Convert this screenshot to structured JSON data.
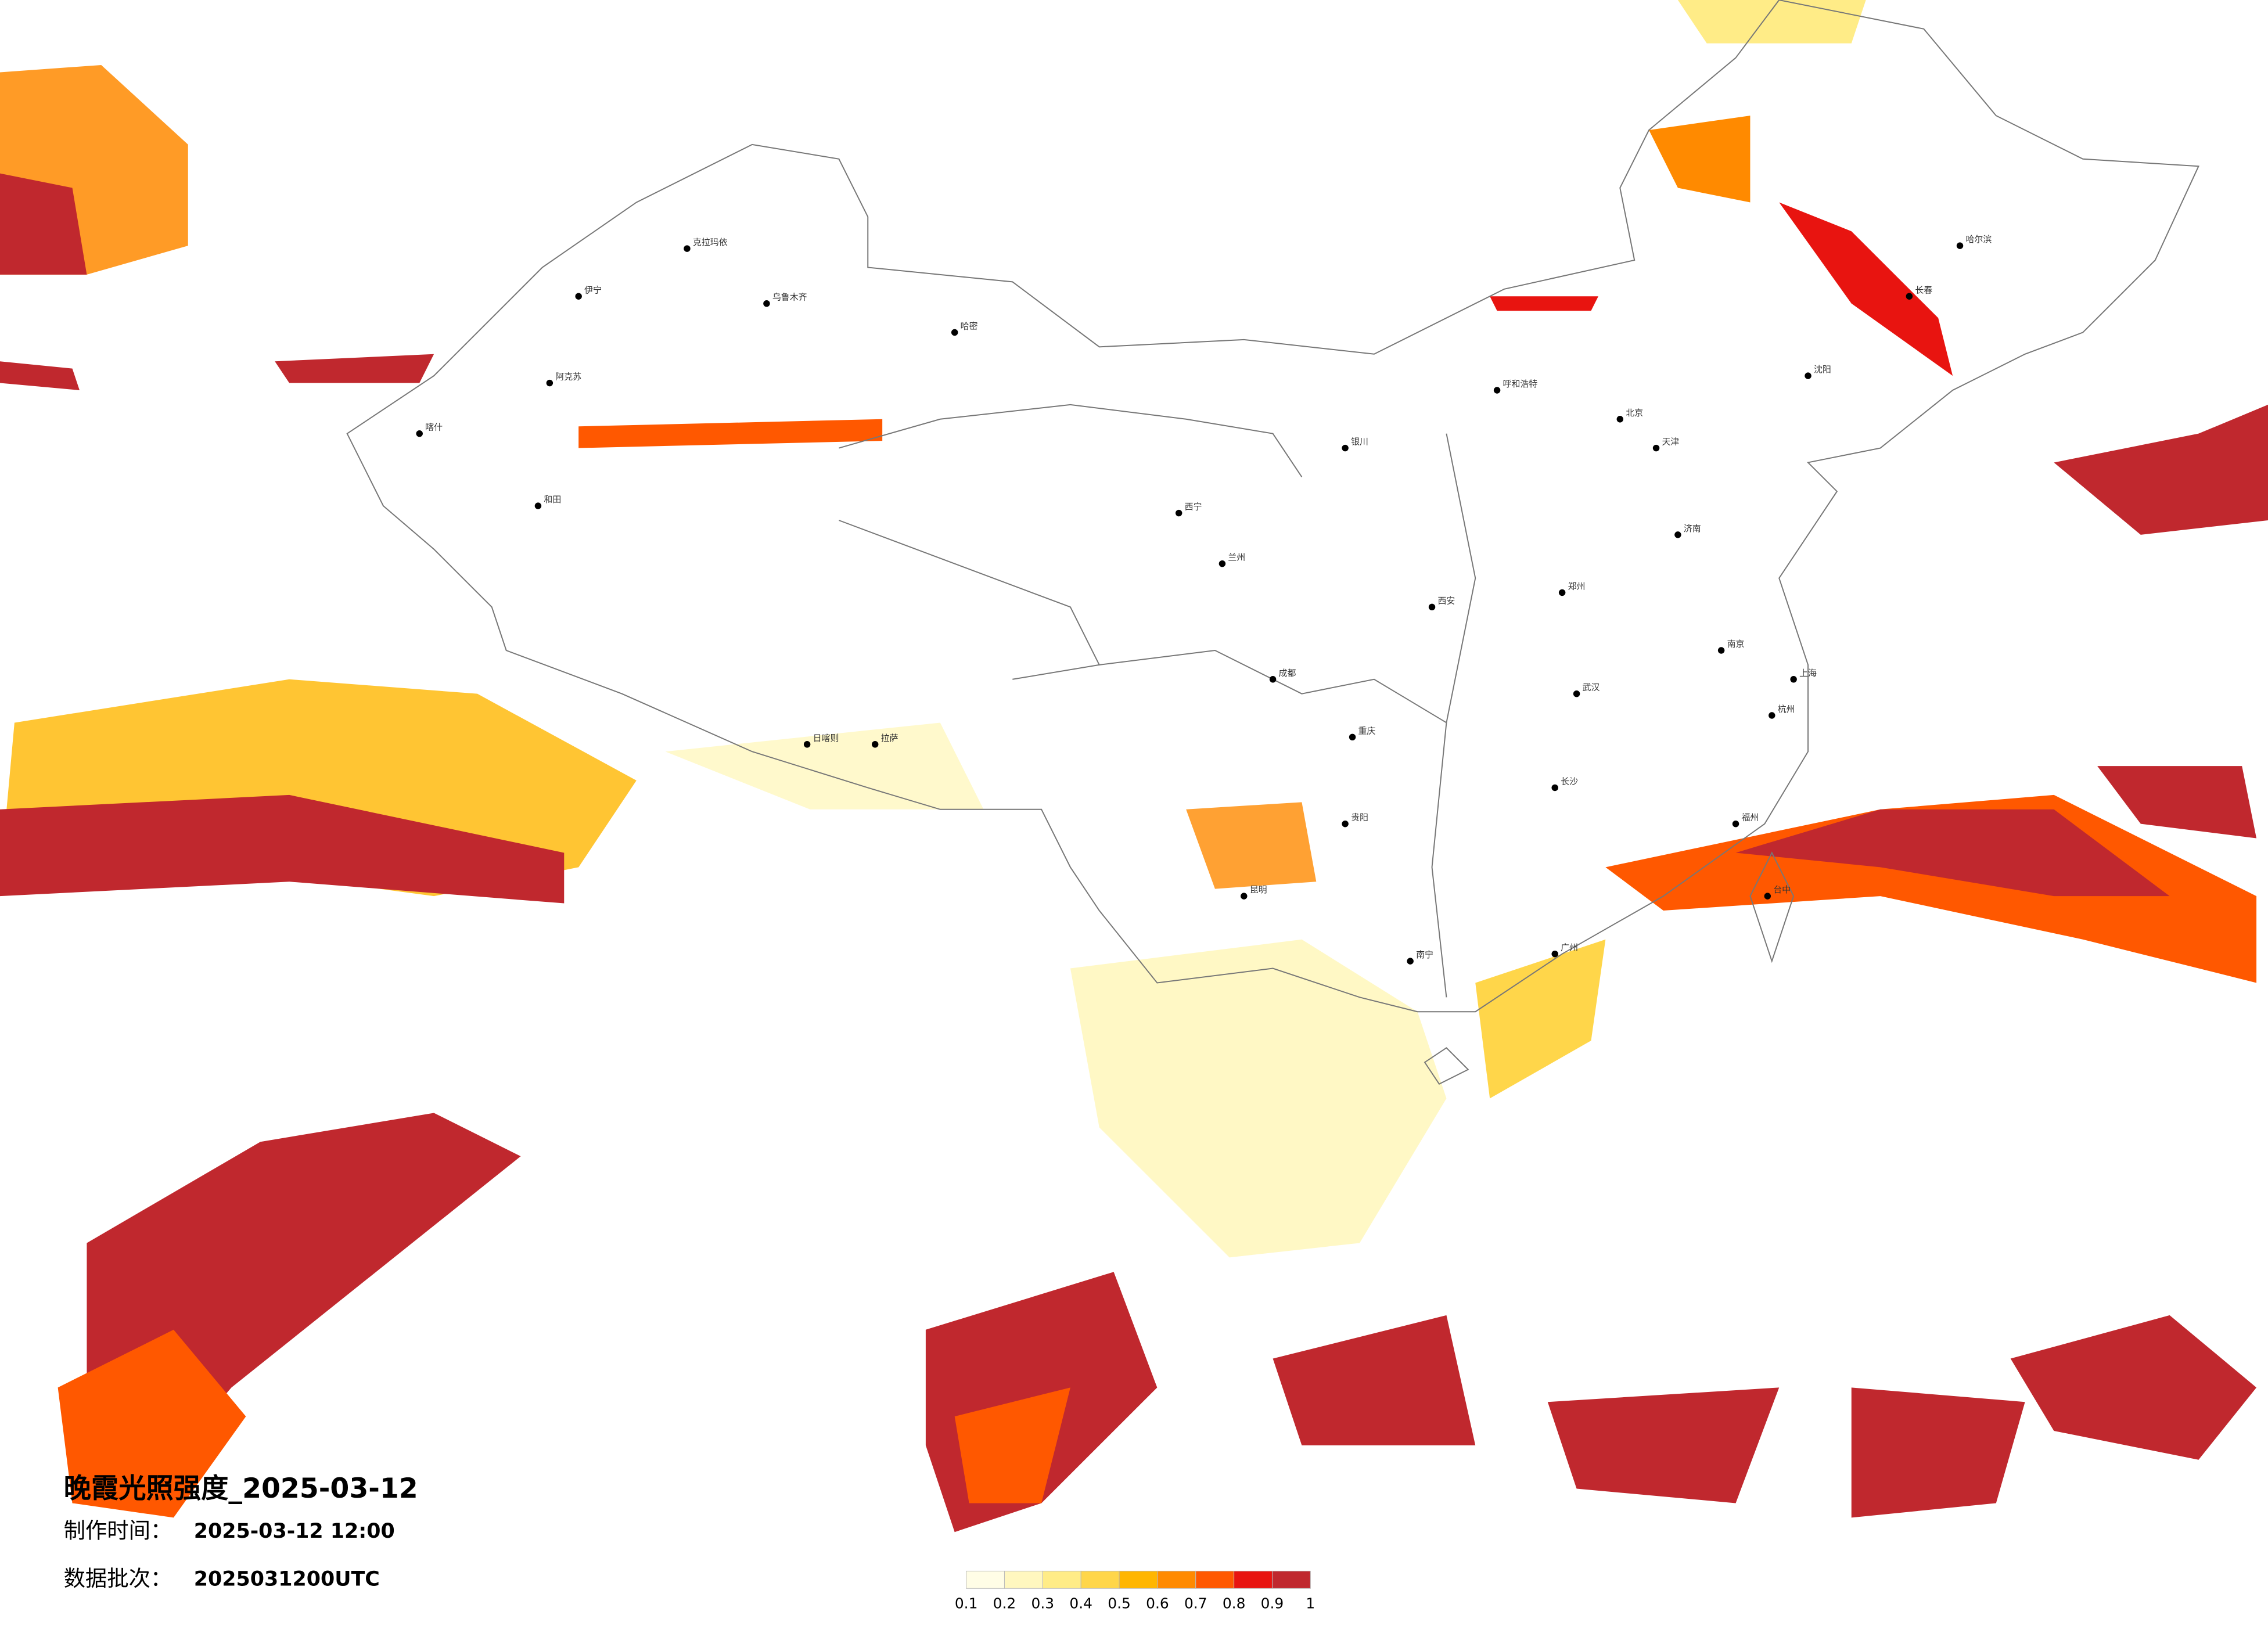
{
  "header": {
    "title": "晚霞光照强度_2025-03-12",
    "made_label": "制作时间：",
    "made_time": "2025-03-12 12:00",
    "batch_label": "数据批次：",
    "batch": "2025031200UTC"
  },
  "legend": {
    "colors": [
      "#fffde6",
      "#fff7bf",
      "#ffec87",
      "#ffd64a",
      "#ffb600",
      "#ff8a00",
      "#ff5800",
      "#e81410",
      "#c0282e"
    ],
    "ticks": [
      0.1,
      0.2,
      0.3,
      0.4,
      0.5,
      0.6,
      0.7,
      0.8,
      0.9,
      1
    ]
  },
  "cities": [
    "克拉玛依",
    "乌鲁木齐",
    "伊宁",
    "阿克苏",
    "喀什",
    "和田",
    "哈密",
    "拉萨",
    "日喀则",
    "西宁",
    "兰州",
    "银川",
    "呼和浩特",
    "北京",
    "天津",
    "沈阳",
    "长春",
    "哈尔滨",
    "济南",
    "郑州",
    "西安",
    "成都",
    "重庆",
    "武汉",
    "长沙",
    "南京",
    "上海",
    "杭州",
    "福州",
    "广州",
    "南宁",
    "昆明",
    "贵阳",
    "台中"
  ]
}
